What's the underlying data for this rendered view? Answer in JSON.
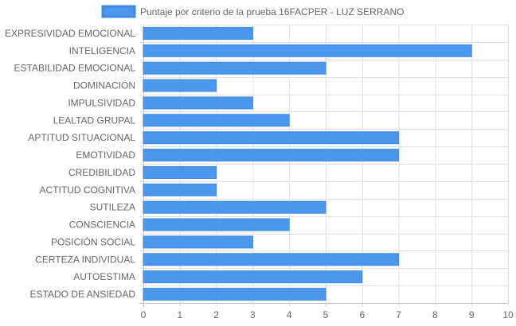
{
  "colors": {
    "bar_fill": "#4a97ec",
    "bar_border": "#3f8ae0",
    "grid": "#e0e0e0",
    "grid_axis": "#bdbdbd",
    "text": "#666666"
  },
  "chart_data": {
    "type": "bar",
    "orientation": "horizontal",
    "categories": [
      "EXPRESIVIDAD EMOCIONAL",
      "INTELIGENCIA",
      "ESTABILIDAD EMOCIONAL",
      "DOMINACIÓN",
      "IMPULSIVIDAD",
      "LEALTAD GRUPAL",
      "APTITUD SITUACIONAL",
      "EMOTIVIDAD",
      "CREDIBILIDAD",
      "ACTITUD COGNITIVA",
      "SUTILEZA",
      "CONSCIENCIA",
      "POSICIÓN SOCIAL",
      "CERTEZA INDIVIDUAL",
      "AUTOESTIMA",
      "ESTADO DE ANSIEDAD"
    ],
    "series": [
      {
        "name": "Puntaje por criterio de la prueba 16FACPER - LUZ SERRANO",
        "values": [
          3,
          9,
          5,
          2,
          3,
          4,
          7,
          7,
          2,
          2,
          5,
          4,
          3,
          7,
          6,
          5
        ]
      }
    ],
    "xlim": [
      0,
      10
    ],
    "x_ticks": [
      "0",
      "1",
      "2",
      "3",
      "4",
      "5",
      "6",
      "7",
      "8",
      "9",
      "10"
    ],
    "grid": true,
    "legend_position": "top"
  }
}
